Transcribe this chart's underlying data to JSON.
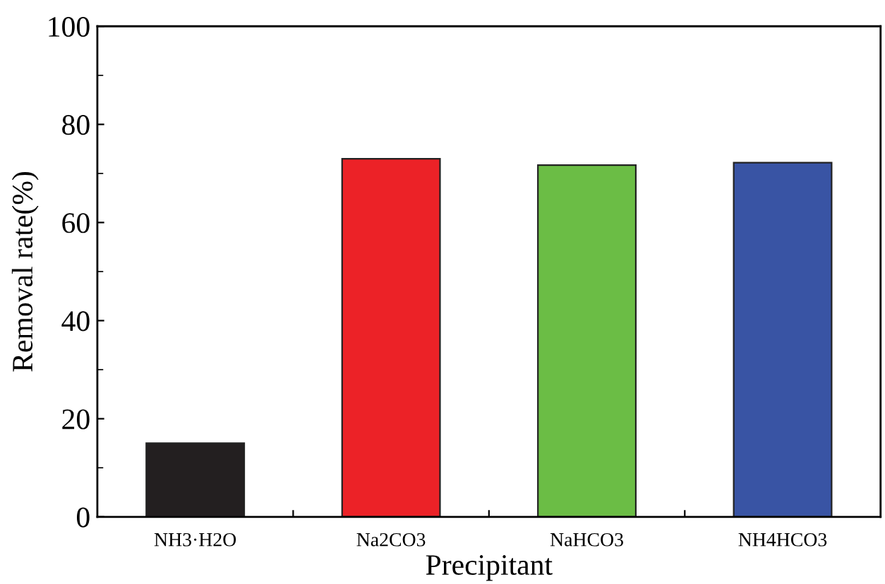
{
  "chart_data": {
    "type": "bar",
    "xlabel": "Precipitant",
    "ylabel": "Removal rate(%)",
    "categories": [
      "NH3·H2O",
      "Na2CO3",
      "NaHCO3",
      "NH4HCO3"
    ],
    "values": [
      15,
      73,
      71.7,
      72.2
    ],
    "colors": [
      "#231f20",
      "#ec2227",
      "#6bbd45",
      "#3954a4"
    ],
    "ylim": [
      0,
      100
    ],
    "yticks": [
      0,
      20,
      40,
      60,
      80,
      100
    ],
    "grid": false
  }
}
